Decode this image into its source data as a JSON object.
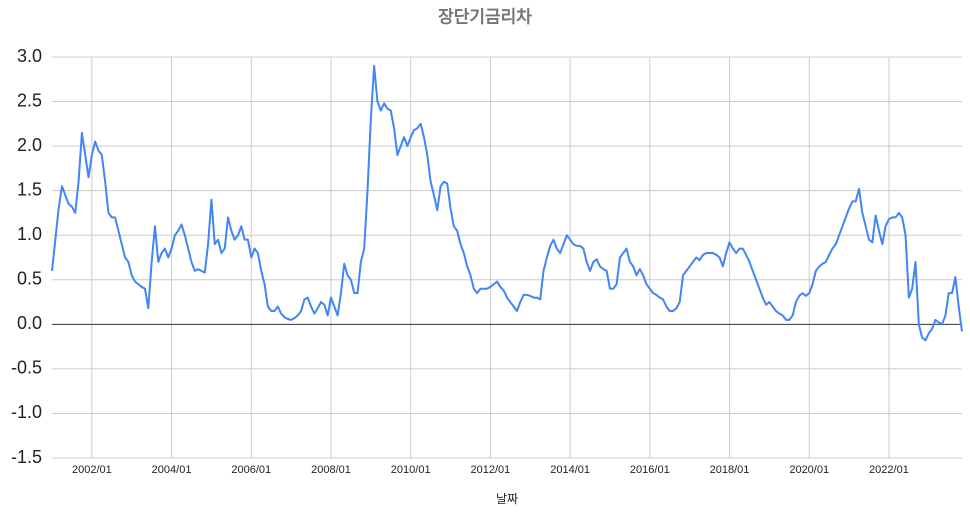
{
  "chart_data": {
    "type": "line",
    "title": "장단기금리차",
    "x_label": "날짜",
    "categories": [
      "2001/01",
      "2001/02",
      "2001/03",
      "2001/04",
      "2001/05",
      "2001/06",
      "2001/07",
      "2001/08",
      "2001/09",
      "2001/10",
      "2001/11",
      "2001/12",
      "2002/01",
      "2002/02",
      "2002/03",
      "2002/04",
      "2002/05",
      "2002/06",
      "2002/07",
      "2002/08",
      "2002/09",
      "2002/10",
      "2002/11",
      "2002/12",
      "2003/01",
      "2003/02",
      "2003/03",
      "2003/04",
      "2003/05",
      "2003/06",
      "2003/07",
      "2003/08",
      "2003/09",
      "2003/10",
      "2003/11",
      "2003/12",
      "2004/01",
      "2004/02",
      "2004/03",
      "2004/04",
      "2004/05",
      "2004/06",
      "2004/07",
      "2004/08",
      "2004/09",
      "2004/10",
      "2004/11",
      "2004/12",
      "2005/01",
      "2005/02",
      "2005/03",
      "2005/04",
      "2005/05",
      "2005/06",
      "2005/07",
      "2005/08",
      "2005/09",
      "2005/10",
      "2005/11",
      "2005/12",
      "2006/01",
      "2006/02",
      "2006/03",
      "2006/04",
      "2006/05",
      "2006/06",
      "2006/07",
      "2006/08",
      "2006/09",
      "2006/10",
      "2006/11",
      "2006/12",
      "2007/01",
      "2007/02",
      "2007/03",
      "2007/04",
      "2007/05",
      "2007/06",
      "2007/07",
      "2007/08",
      "2007/09",
      "2007/10",
      "2007/11",
      "2007/12",
      "2008/01",
      "2008/02",
      "2008/03",
      "2008/04",
      "2008/05",
      "2008/06",
      "2008/07",
      "2008/08",
      "2008/09",
      "2008/10",
      "2008/11",
      "2008/12",
      "2009/01",
      "2009/02",
      "2009/03",
      "2009/04",
      "2009/05",
      "2009/06",
      "2009/07",
      "2009/08",
      "2009/09",
      "2009/10",
      "2009/11",
      "2009/12",
      "2010/01",
      "2010/02",
      "2010/03",
      "2010/04",
      "2010/05",
      "2010/06",
      "2010/07",
      "2010/08",
      "2010/09",
      "2010/10",
      "2010/11",
      "2010/12",
      "2011/01",
      "2011/02",
      "2011/03",
      "2011/04",
      "2011/05",
      "2011/06",
      "2011/07",
      "2011/08",
      "2011/09",
      "2011/10",
      "2011/11",
      "2011/12",
      "2012/01",
      "2012/02",
      "2012/03",
      "2012/04",
      "2012/05",
      "2012/06",
      "2012/07",
      "2012/08",
      "2012/09",
      "2012/10",
      "2012/11",
      "2012/12",
      "2013/01",
      "2013/02",
      "2013/03",
      "2013/04",
      "2013/05",
      "2013/06",
      "2013/07",
      "2013/08",
      "2013/09",
      "2013/10",
      "2013/11",
      "2013/12",
      "2014/01",
      "2014/02",
      "2014/03",
      "2014/04",
      "2014/05",
      "2014/06",
      "2014/07",
      "2014/08",
      "2014/09",
      "2014/10",
      "2014/11",
      "2014/12",
      "2015/01",
      "2015/02",
      "2015/03",
      "2015/04",
      "2015/05",
      "2015/06",
      "2015/07",
      "2015/08",
      "2015/09",
      "2015/10",
      "2015/11",
      "2015/12",
      "2016/01",
      "2016/02",
      "2016/03",
      "2016/04",
      "2016/05",
      "2016/06",
      "2016/07",
      "2016/08",
      "2016/09",
      "2016/10",
      "2016/11",
      "2016/12",
      "2017/01",
      "2017/02",
      "2017/03",
      "2017/04",
      "2017/05",
      "2017/06",
      "2017/07",
      "2017/08",
      "2017/09",
      "2017/10",
      "2017/11",
      "2017/12",
      "2018/01",
      "2018/02",
      "2018/03",
      "2018/04",
      "2018/05",
      "2018/06",
      "2018/07",
      "2018/08",
      "2018/09",
      "2018/10",
      "2018/11",
      "2018/12",
      "2019/01",
      "2019/02",
      "2019/03",
      "2019/04",
      "2019/05",
      "2019/06",
      "2019/07",
      "2019/08",
      "2019/09",
      "2019/10",
      "2019/11",
      "2019/12",
      "2020/01",
      "2020/02",
      "2020/03",
      "2020/04",
      "2020/05",
      "2020/06",
      "2020/07",
      "2020/08",
      "2020/09",
      "2020/10",
      "2020/11",
      "2020/12",
      "2021/01",
      "2021/02",
      "2021/03",
      "2021/04",
      "2021/05",
      "2021/06",
      "2021/07",
      "2021/08",
      "2021/09",
      "2021/10",
      "2021/11",
      "2021/12",
      "2022/01",
      "2022/02",
      "2022/03",
      "2022/04",
      "2022/05",
      "2022/06",
      "2022/07",
      "2022/08",
      "2022/09",
      "2022/10",
      "2022/11",
      "2022/12",
      "2023/01",
      "2023/02",
      "2023/03",
      "2023/04",
      "2023/05",
      "2023/06",
      "2023/07",
      "2023/08",
      "2023/09",
      "2023/10",
      "2023/11"
    ],
    "values": [
      0.6,
      0.95,
      1.3,
      1.55,
      1.45,
      1.35,
      1.32,
      1.25,
      1.6,
      2.15,
      1.9,
      1.65,
      1.9,
      2.05,
      1.95,
      1.9,
      1.6,
      1.25,
      1.2,
      1.2,
      1.05,
      0.9,
      0.75,
      0.7,
      0.55,
      0.48,
      0.45,
      0.42,
      0.4,
      0.18,
      0.7,
      1.1,
      0.7,
      0.8,
      0.85,
      0.75,
      0.85,
      1.0,
      1.05,
      1.12,
      1.0,
      0.85,
      0.7,
      0.6,
      0.62,
      0.6,
      0.58,
      0.9,
      1.4,
      0.9,
      0.95,
      0.8,
      0.85,
      1.2,
      1.05,
      0.95,
      1.0,
      1.1,
      0.95,
      0.95,
      0.75,
      0.85,
      0.8,
      0.6,
      0.45,
      0.2,
      0.15,
      0.15,
      0.2,
      0.12,
      0.08,
      0.06,
      0.05,
      0.07,
      0.1,
      0.15,
      0.28,
      0.3,
      0.2,
      0.12,
      0.18,
      0.25,
      0.22,
      0.1,
      0.3,
      0.2,
      0.1,
      0.35,
      0.68,
      0.55,
      0.5,
      0.35,
      0.35,
      0.7,
      0.85,
      1.5,
      2.3,
      2.9,
      2.5,
      2.4,
      2.48,
      2.42,
      2.4,
      2.2,
      1.9,
      2.0,
      2.1,
      2.0,
      2.1,
      2.18,
      2.2,
      2.25,
      2.1,
      1.9,
      1.6,
      1.45,
      1.28,
      1.55,
      1.6,
      1.58,
      1.3,
      1.1,
      1.05,
      0.9,
      0.8,
      0.65,
      0.55,
      0.4,
      0.35,
      0.4,
      0.4,
      0.4,
      0.42,
      0.45,
      0.48,
      0.42,
      0.38,
      0.3,
      0.25,
      0.2,
      0.15,
      0.25,
      0.33,
      0.33,
      0.32,
      0.3,
      0.3,
      0.28,
      0.6,
      0.75,
      0.88,
      0.95,
      0.85,
      0.8,
      0.9,
      1.0,
      0.95,
      0.9,
      0.88,
      0.88,
      0.85,
      0.7,
      0.6,
      0.7,
      0.73,
      0.65,
      0.62,
      0.6,
      0.4,
      0.4,
      0.45,
      0.75,
      0.8,
      0.85,
      0.7,
      0.65,
      0.55,
      0.62,
      0.55,
      0.45,
      0.4,
      0.35,
      0.33,
      0.3,
      0.28,
      0.2,
      0.15,
      0.15,
      0.18,
      0.25,
      0.55,
      0.6,
      0.65,
      0.7,
      0.75,
      0.72,
      0.78,
      0.8,
      0.8,
      0.8,
      0.78,
      0.75,
      0.65,
      0.8,
      0.92,
      0.85,
      0.8,
      0.85,
      0.85,
      0.78,
      0.7,
      0.6,
      0.5,
      0.4,
      0.3,
      0.22,
      0.25,
      0.2,
      0.15,
      0.12,
      0.1,
      0.05,
      0.05,
      0.1,
      0.25,
      0.32,
      0.35,
      0.32,
      0.35,
      0.45,
      0.6,
      0.65,
      0.68,
      0.7,
      0.78,
      0.85,
      0.9,
      1.0,
      1.1,
      1.2,
      1.3,
      1.38,
      1.38,
      1.52,
      1.25,
      1.1,
      0.95,
      0.92,
      1.22,
      1.05,
      0.9,
      1.1,
      1.18,
      1.2,
      1.2,
      1.25,
      1.2,
      1.0,
      0.3,
      0.4,
      0.7,
      0.0,
      -0.15,
      -0.18,
      -0.1,
      -0.05,
      0.05,
      0.02,
      0.0,
      0.1,
      0.35,
      0.35,
      0.53,
      0.2,
      -0.08
    ],
    "color": "#4285f4",
    "xticks": [
      "2002/01",
      "2004/01",
      "2006/01",
      "2008/01",
      "2010/01",
      "2012/01",
      "2014/01",
      "2016/01",
      "2018/01",
      "2020/01",
      "2022/01"
    ],
    "ylim": [
      -1.5,
      3.0
    ],
    "yticks": [
      {
        "value": -1.5,
        "label": "-1.5"
      },
      {
        "value": -1.0,
        "label": "-1.0"
      },
      {
        "value": -0.5,
        "label": "-0.5"
      },
      {
        "value": 0,
        "label": "0.0"
      },
      {
        "value": 0.5,
        "label": "0.5"
      },
      {
        "value": 1.0,
        "label": "1.0"
      },
      {
        "value": 1.5,
        "label": "1.5"
      },
      {
        "value": 2.0,
        "label": "2.0"
      },
      {
        "value": 2.5,
        "label": "2.5"
      },
      {
        "value": 3.0,
        "label": "3.0"
      }
    ],
    "grid": true
  }
}
